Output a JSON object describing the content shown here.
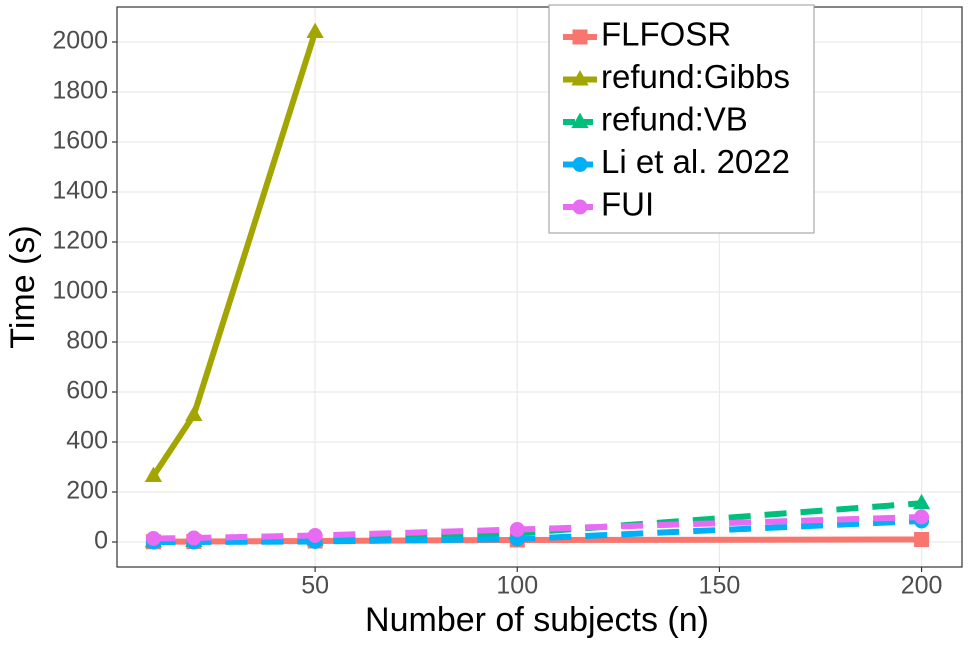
{
  "chart_data": {
    "type": "line",
    "xlabel": "Number of subjects (n)",
    "ylabel": "Time (s)",
    "x": [
      10,
      20,
      50,
      100,
      200
    ],
    "series": [
      {
        "name": "FLFOSR",
        "color": "#F8766D",
        "dashed": false,
        "marker": "square",
        "values": [
          1,
          2,
          4,
          8,
          10
        ]
      },
      {
        "name": "refund:Gibbs",
        "color": "#A3A500",
        "dashed": false,
        "marker": "triangle",
        "values": [
          264,
          508,
          2040,
          null,
          null
        ]
      },
      {
        "name": "refund:VB",
        "color": "#00BF7D",
        "dashed": true,
        "marker": "triangle",
        "values": [
          2,
          4,
          10,
          35,
          155
        ]
      },
      {
        "name": "Li et al. 2022",
        "color": "#00B0F6",
        "dashed": true,
        "marker": "circle",
        "values": [
          0,
          0,
          2,
          12,
          84
        ]
      },
      {
        "name": "FUI",
        "color": "#E76BF3",
        "dashed": true,
        "marker": "circle",
        "values": [
          14,
          16,
          26,
          50,
          100
        ]
      }
    ],
    "xlim": [
      1,
      210
    ],
    "ylim": [
      -100,
      2140
    ],
    "xticks": [
      50,
      100,
      150,
      200
    ],
    "yticks": [
      0,
      200,
      400,
      600,
      800,
      1000,
      1200,
      1400,
      1600,
      1800,
      2000
    ],
    "grid": true,
    "legend": "top-right"
  }
}
